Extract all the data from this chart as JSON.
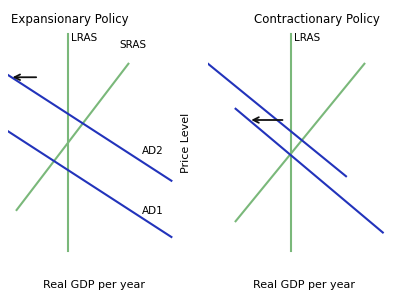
{
  "left_title": "Expansionary Policy",
  "right_title": "Contractionary Policy",
  "ylabel": "Price Level",
  "xlabel": "Real GDP per year",
  "bg_color": "#ffffff",
  "lras_color": "#7ab87a",
  "sras_color": "#7ab87a",
  "ad_color": "#2233bb",
  "arrow_color": "#111111",
  "title_fontsize": 8.5,
  "label_fontsize": 7.5,
  "axis_label_fontsize": 8,
  "ylabel_fontsize": 8
}
